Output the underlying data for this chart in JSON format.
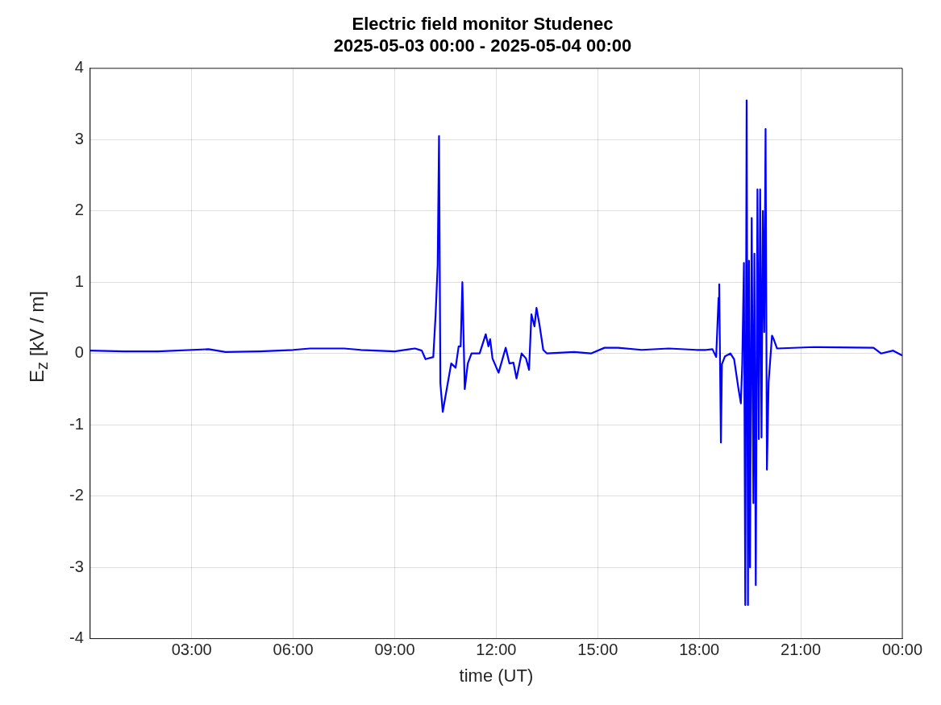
{
  "chart_data": {
    "type": "line",
    "title": [
      "Electric field monitor Studenec",
      "2025-05-03 00:00 - 2025-05-04 00:00"
    ],
    "xlabel": "time (UT)",
    "ylabel": "E$_{z}$ [kV / m]",
    "xlim": [
      0,
      24
    ],
    "xticks": [
      {
        "value": 3,
        "label": "03:00"
      },
      {
        "value": 6,
        "label": "06:00"
      },
      {
        "value": 9,
        "label": "09:00"
      },
      {
        "value": 12,
        "label": "12:00"
      },
      {
        "value": 15,
        "label": "15:00"
      },
      {
        "value": 18,
        "label": "18:00"
      },
      {
        "value": 21,
        "label": "21:00"
      },
      {
        "value": 24,
        "label": "00:00"
      }
    ],
    "ylim": [
      -4,
      4
    ],
    "yticks": [
      -4,
      -3,
      -2,
      -1,
      0,
      1,
      2,
      3,
      4
    ],
    "grid": true,
    "legend": false,
    "marker": "none",
    "line_style": "solid",
    "series": [
      {
        "color": "#0000ff",
        "x": [
          0,
          1,
          2,
          3.5,
          4,
          5,
          6,
          6.5,
          7.5,
          8,
          9,
          9.6,
          9.8,
          9.91,
          10.14,
          10.21,
          10.27,
          10.31,
          10.35,
          10.42,
          10.53,
          10.67,
          10.8,
          10.89,
          10.95,
          11.0,
          11.07,
          11.16,
          11.27,
          11.51,
          11.69,
          11.77,
          11.82,
          11.89,
          12.07,
          12.28,
          12.39,
          12.51,
          12.6,
          12.75,
          12.88,
          12.97,
          13.04,
          13.13,
          13.19,
          13.28,
          13.39,
          13.5,
          14.3,
          14.8,
          15.2,
          15.6,
          16.3,
          17.1,
          17.92,
          18.2,
          18.39,
          18.5,
          18.57,
          18.59,
          18.64,
          18.67,
          18.76,
          18.92,
          19.03,
          19.16,
          19.23,
          19.27,
          19.32,
          19.36,
          19.4,
          19.44,
          19.47,
          19.5,
          19.55,
          19.6,
          19.63,
          19.67,
          19.72,
          19.76,
          19.8,
          19.84,
          19.88,
          19.92,
          19.96,
          20.0,
          20.05,
          20.15,
          20.2,
          20.3,
          21.39,
          23.15,
          23.37,
          23.73,
          24
        ],
        "values": [
          0.04,
          0.03,
          0.03,
          0.06,
          0.02,
          0.03,
          0.05,
          0.07,
          0.07,
          0.05,
          0.03,
          0.07,
          0.04,
          -0.08,
          -0.05,
          0.55,
          1.24,
          3.05,
          -0.42,
          -0.82,
          -0.52,
          -0.14,
          -0.2,
          0.1,
          0.1,
          1.0,
          -0.5,
          -0.14,
          0,
          0,
          0.27,
          0.1,
          0.2,
          -0.07,
          -0.27,
          0.08,
          -0.14,
          -0.13,
          -0.35,
          0,
          -0.07,
          -0.23,
          0.55,
          0.38,
          0.64,
          0.4,
          0.05,
          0,
          0.02,
          0,
          0.08,
          0.08,
          0.05,
          0.07,
          0.05,
          0.05,
          0.06,
          -0.05,
          0.78,
          0.97,
          -1.25,
          -0.15,
          -0.04,
          0,
          -0.08,
          -0.5,
          -0.7,
          -0.15,
          1.27,
          -3.53,
          3.55,
          -3.53,
          1.3,
          -3,
          1.9,
          -2.1,
          1.4,
          -3.25,
          2.3,
          -1.2,
          2.3,
          -1.18,
          2,
          0.3,
          3.15,
          -1.63,
          -0.4,
          0.25,
          0.2,
          0.07,
          0.09,
          0.08,
          0,
          0.04,
          -0.03
        ]
      }
    ]
  }
}
